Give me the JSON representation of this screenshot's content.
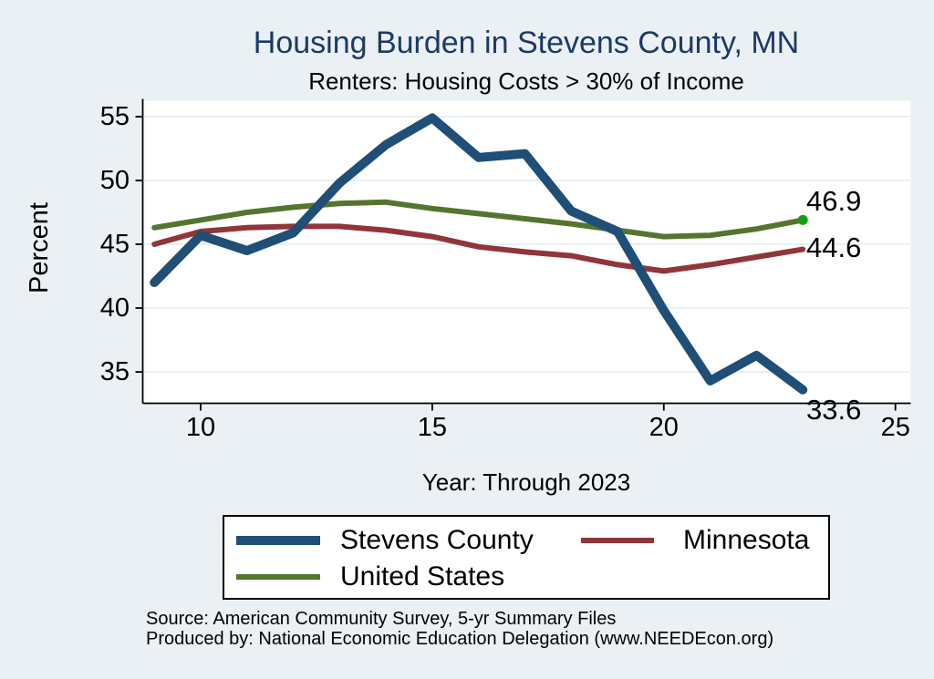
{
  "colors": {
    "background": "#eaf0f3",
    "plot_background": "#ffffff",
    "gridline": "#e5eff2",
    "axis": "#000000",
    "title_text": "#1d3a66",
    "stevens_county_line": "#1f4e76",
    "minnesota_line": "#90353b",
    "united_states_line": "#55752f",
    "end_marker_green": "#11a011"
  },
  "chart_data": {
    "type": "line",
    "title": "Housing Burden in Stevens County, MN",
    "subtitle": "Renters: Housing Costs > 30% of Income",
    "xlabel": "Year: Through 2023",
    "ylabel": "Percent",
    "grid": "horizontal",
    "legend_position": "bottom",
    "x": [
      9,
      10,
      11,
      12,
      13,
      14,
      15,
      16,
      17,
      18,
      19,
      20,
      21,
      22,
      23
    ],
    "xticks": [
      10,
      15,
      20,
      25
    ],
    "yticks": [
      35,
      40,
      45,
      50,
      55
    ],
    "xlim": [
      8.75,
      25.33
    ],
    "ylim": [
      32.54,
      56.25
    ],
    "series": [
      {
        "name": "Stevens County",
        "slug": "stevens-county",
        "color": "#1f4e76",
        "line_width": 10,
        "values": [
          42.0,
          45.7,
          44.5,
          45.9,
          49.8,
          52.8,
          54.9,
          51.8,
          52.1,
          47.6,
          46.0,
          39.8,
          34.3,
          36.3,
          33.6
        ],
        "end_label": "33.6"
      },
      {
        "name": "Minnesota",
        "slug": "minnesota",
        "color": "#90353b",
        "line_width": 6,
        "values": [
          45.0,
          46.0,
          46.3,
          46.4,
          46.4,
          46.1,
          45.6,
          44.8,
          44.4,
          44.1,
          43.4,
          42.9,
          43.4,
          44.0,
          44.6
        ],
        "end_label": "44.6"
      },
      {
        "name": "United States",
        "slug": "united-states",
        "color": "#55752f",
        "line_width": 6,
        "values": [
          46.3,
          46.9,
          47.5,
          47.9,
          48.2,
          48.3,
          47.8,
          47.4,
          47.0,
          46.6,
          46.1,
          45.6,
          45.7,
          46.2,
          46.9
        ],
        "end_label": "46.9",
        "end_marker_color": "#11a011"
      }
    ]
  },
  "footer": {
    "source": "Source: American Community Survey, 5-yr Summary Files",
    "produced_by": "Produced by: National Economic Education Delegation (www.NEEDEcon.org)"
  }
}
